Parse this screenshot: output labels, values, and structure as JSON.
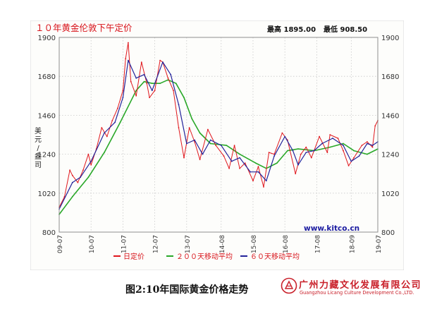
{
  "chart_data": {
    "type": "line",
    "title": "１０年黄金伦敦下午定价",
    "stats_high": "最高 1895.00",
    "stats_low": "最低 908.50",
    "ylabel": "美元/盎司",
    "watermark": "www.kitco.cn",
    "ylim": [
      800,
      1900
    ],
    "y_ticks": [
      "800",
      "1020",
      "1240",
      "1460",
      "1680",
      "1900"
    ],
    "x_start": "2009-07",
    "x_end": "2019-07",
    "x_ticks": [
      {
        "date": "2009-07",
        "label": "09-07"
      },
      {
        "date": "2010-07",
        "label": "10-07"
      },
      {
        "date": "2011-07",
        "label": "11-07"
      },
      {
        "date": "2012-07",
        "label": "12-07"
      },
      {
        "date": "2013-07",
        "label": "13-07"
      },
      {
        "date": "2014-08",
        "label": "14-08"
      },
      {
        "date": "2015-08",
        "label": "15-08"
      },
      {
        "date": "2016-08",
        "label": "16-08"
      },
      {
        "date": "2017-08",
        "label": "17-08"
      },
      {
        "date": "2018-09",
        "label": "18-09"
      },
      {
        "date": "2019-07",
        "label": "19-07"
      }
    ],
    "grid": true,
    "legend_position": "bottom",
    "series": [
      {
        "name": "日定价",
        "color": "#e0161c",
        "width": 1.0,
        "points": [
          [
            "2009-07",
            940
          ],
          [
            "2009-09",
            1000
          ],
          [
            "2009-11",
            1150
          ],
          [
            "2009-12",
            1120
          ],
          [
            "2010-02",
            1080
          ],
          [
            "2010-04",
            1150
          ],
          [
            "2010-06",
            1240
          ],
          [
            "2010-07",
            1180
          ],
          [
            "2010-09",
            1270
          ],
          [
            "2010-11",
            1390
          ],
          [
            "2011-01",
            1340
          ],
          [
            "2011-03",
            1430
          ],
          [
            "2011-05",
            1500
          ],
          [
            "2011-07",
            1600
          ],
          [
            "2011-08",
            1780
          ],
          [
            "2011-09",
            1870
          ],
          [
            "2011-10",
            1650
          ],
          [
            "2011-12",
            1570
          ],
          [
            "2012-02",
            1760
          ],
          [
            "2012-04",
            1640
          ],
          [
            "2012-05",
            1560
          ],
          [
            "2012-07",
            1600
          ],
          [
            "2012-09",
            1770
          ],
          [
            "2012-10",
            1760
          ],
          [
            "2012-12",
            1670
          ],
          [
            "2013-02",
            1600
          ],
          [
            "2013-04",
            1390
          ],
          [
            "2013-06",
            1220
          ],
          [
            "2013-08",
            1390
          ],
          [
            "2013-10",
            1310
          ],
          [
            "2013-12",
            1210
          ],
          [
            "2014-03",
            1380
          ],
          [
            "2014-06",
            1290
          ],
          [
            "2014-09",
            1230
          ],
          [
            "2014-11",
            1160
          ],
          [
            "2015-01",
            1290
          ],
          [
            "2015-03",
            1160
          ],
          [
            "2015-05",
            1190
          ],
          [
            "2015-08",
            1090
          ],
          [
            "2015-10",
            1170
          ],
          [
            "2015-12",
            1055
          ],
          [
            "2016-02",
            1250
          ],
          [
            "2016-04",
            1240
          ],
          [
            "2016-07",
            1360
          ],
          [
            "2016-09",
            1320
          ],
          [
            "2016-12",
            1130
          ],
          [
            "2017-02",
            1240
          ],
          [
            "2017-04",
            1280
          ],
          [
            "2017-06",
            1220
          ],
          [
            "2017-09",
            1340
          ],
          [
            "2017-12",
            1250
          ],
          [
            "2018-01",
            1350
          ],
          [
            "2018-04",
            1330
          ],
          [
            "2018-06",
            1260
          ],
          [
            "2018-08",
            1175
          ],
          [
            "2018-10",
            1220
          ],
          [
            "2019-01",
            1290
          ],
          [
            "2019-03",
            1310
          ],
          [
            "2019-05",
            1280
          ],
          [
            "2019-06",
            1400
          ],
          [
            "2019-07",
            1430
          ]
        ]
      },
      {
        "name": "２００天移动平均",
        "color": "#2aa829",
        "width": 1.6,
        "points": [
          [
            "2009-07",
            900
          ],
          [
            "2009-12",
            1000
          ],
          [
            "2010-06",
            1110
          ],
          [
            "2010-12",
            1250
          ],
          [
            "2011-06",
            1420
          ],
          [
            "2011-12",
            1600
          ],
          [
            "2012-03",
            1650
          ],
          [
            "2012-06",
            1640
          ],
          [
            "2012-09",
            1640
          ],
          [
            "2012-12",
            1660
          ],
          [
            "2013-03",
            1640
          ],
          [
            "2013-06",
            1560
          ],
          [
            "2013-09",
            1440
          ],
          [
            "2013-12",
            1360
          ],
          [
            "2014-04",
            1300
          ],
          [
            "2014-10",
            1290
          ],
          [
            "2015-03",
            1240
          ],
          [
            "2015-09",
            1190
          ],
          [
            "2016-01",
            1160
          ],
          [
            "2016-05",
            1190
          ],
          [
            "2016-09",
            1260
          ],
          [
            "2017-01",
            1270
          ],
          [
            "2017-07",
            1260
          ],
          [
            "2018-01",
            1280
          ],
          [
            "2018-06",
            1300
          ],
          [
            "2018-10",
            1260
          ],
          [
            "2019-03",
            1240
          ],
          [
            "2019-07",
            1270
          ]
        ]
      },
      {
        "name": "６０天移动平均",
        "color": "#22229a",
        "width": 1.2,
        "points": [
          [
            "2009-07",
            930
          ],
          [
            "2009-12",
            1080
          ],
          [
            "2010-03",
            1110
          ],
          [
            "2010-07",
            1200
          ],
          [
            "2010-12",
            1360
          ],
          [
            "2011-04",
            1420
          ],
          [
            "2011-07",
            1560
          ],
          [
            "2011-09",
            1770
          ],
          [
            "2011-12",
            1670
          ],
          [
            "2012-03",
            1690
          ],
          [
            "2012-06",
            1600
          ],
          [
            "2012-10",
            1760
          ],
          [
            "2013-01",
            1690
          ],
          [
            "2013-04",
            1520
          ],
          [
            "2013-07",
            1300
          ],
          [
            "2013-10",
            1320
          ],
          [
            "2014-01",
            1240
          ],
          [
            "2014-04",
            1320
          ],
          [
            "2014-08",
            1290
          ],
          [
            "2014-12",
            1200
          ],
          [
            "2015-03",
            1220
          ],
          [
            "2015-07",
            1140
          ],
          [
            "2015-10",
            1140
          ],
          [
            "2016-01",
            1090
          ],
          [
            "2016-04",
            1230
          ],
          [
            "2016-08",
            1340
          ],
          [
            "2016-11",
            1260
          ],
          [
            "2017-01",
            1180
          ],
          [
            "2017-04",
            1250
          ],
          [
            "2017-07",
            1260
          ],
          [
            "2017-10",
            1300
          ],
          [
            "2018-02",
            1330
          ],
          [
            "2018-06",
            1290
          ],
          [
            "2018-09",
            1200
          ],
          [
            "2018-12",
            1230
          ],
          [
            "2019-03",
            1300
          ],
          [
            "2019-05",
            1290
          ],
          [
            "2019-07",
            1310
          ]
        ]
      }
    ]
  },
  "caption": "图2:10年国际黄金价格走势",
  "brand": {
    "name_cn": "广州力藏文化发展有限公司",
    "name_en": "Guangzhou Licang Culture Development Co.,LTD.",
    "color": "#c9202a"
  }
}
